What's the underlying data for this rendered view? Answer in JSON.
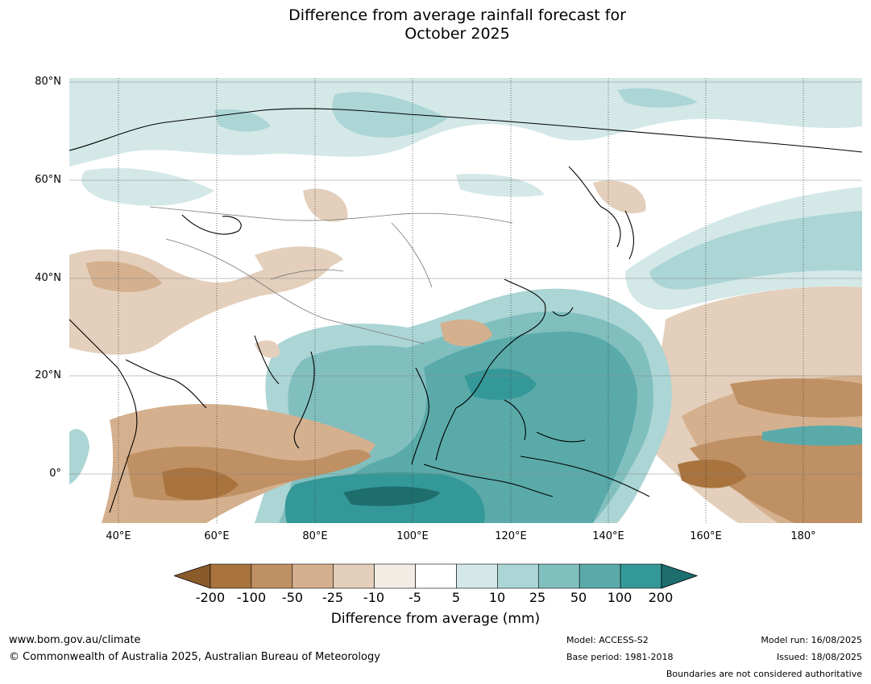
{
  "title": {
    "line1": "Difference from average rainfall forecast for",
    "line2": "October 2025"
  },
  "map": {
    "region": "Asia and western Pacific",
    "lat_labels": [
      "80°N",
      "60°N",
      "40°N",
      "20°N",
      "0°"
    ],
    "lon_labels": [
      "40°E",
      "60°E",
      "80°E",
      "100°E",
      "120°E",
      "140°E",
      "160°E",
      "180°"
    ],
    "colors": {
      "lt_m200": "#8b5a2b",
      "m200_m100": "#a8733d",
      "m100_m50": "#bf9063",
      "m50_m25": "#d4b08e",
      "m25_m10": "#e3cfbb",
      "m10_m5": "#f2ece4",
      "m5_5": "#ffffff",
      "5_10": "#d4e8e8",
      "10_25": "#acd5d5",
      "25_50": "#81bfbf",
      "50_100": "#5aaaaa",
      "100_200": "#359898",
      "gt_200": "#1e6e6e"
    }
  },
  "colorbar": {
    "ticks": [
      "-200",
      "-100",
      "-50",
      "-25",
      "-10",
      "-5",
      "5",
      "10",
      "25",
      "50",
      "100",
      "200"
    ],
    "colors": [
      "#a8733d",
      "#bf9063",
      "#d4b08e",
      "#e3cfbb",
      "#f2ece4",
      "#ffffff",
      "#d4e8e8",
      "#acd5d5",
      "#81bfbf",
      "#5aaaaa",
      "#359898"
    ],
    "under_color": "#8b5a2b",
    "over_color": "#1e6e6e",
    "title": "Difference from average (mm)"
  },
  "footer": {
    "website": "www.bom.gov.au/climate",
    "copyright": "© Commonwealth of Australia 2025, Australian Bureau of Meteorology",
    "model": "Model: ACCESS-S2",
    "base_period": "Base period: 1981-2018",
    "model_run": "Model run: 16/08/2025",
    "issued": "Issued: 18/08/2025",
    "disclaimer": "Boundaries are not considered authoritative"
  }
}
